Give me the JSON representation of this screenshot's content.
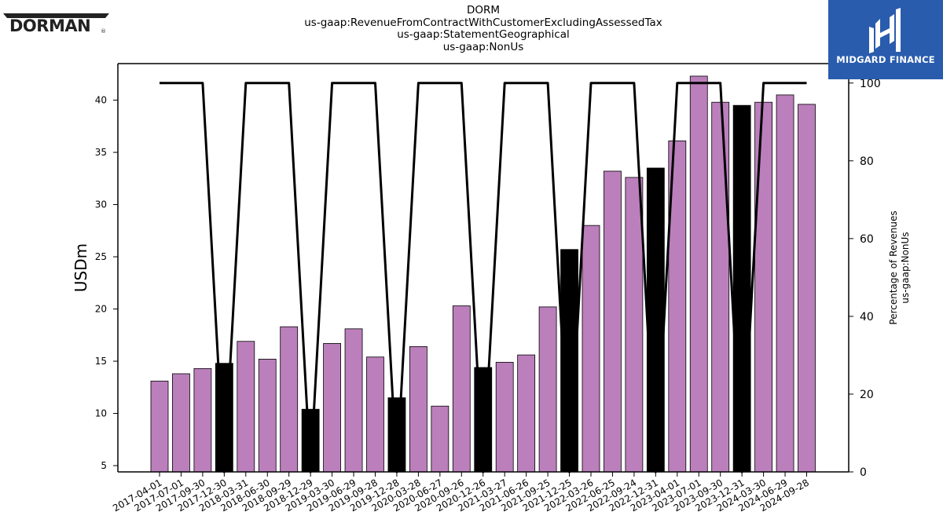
{
  "header": {
    "ticker": "DORM",
    "concept": "us-gaap:RevenueFromContractWithCustomerExcludingAssessedTax",
    "axis": "us-gaap:StatementGeographical",
    "member": "us-gaap:NonUs"
  },
  "brand": {
    "logo_text": "DORMAN"
  },
  "badge": {
    "text": "MIDGARD FINANCE"
  },
  "colors": {
    "bar": "#bb7fbc",
    "highlight_bar": "#000000",
    "line": "#000000",
    "badge_bg": "#2a5cae"
  },
  "chart_data": {
    "type": "bar",
    "categories": [
      "2017-04-01",
      "2017-07-01",
      "2017-09-30",
      "2017-12-30",
      "2018-03-31",
      "2018-06-30",
      "2018-09-29",
      "2018-12-29",
      "2019-03-30",
      "2019-06-29",
      "2019-09-28",
      "2019-12-28",
      "2020-03-28",
      "2020-06-27",
      "2020-09-26",
      "2020-12-26",
      "2021-03-27",
      "2021-06-26",
      "2021-09-25",
      "2021-12-25",
      "2022-03-26",
      "2022-06-25",
      "2022-09-24",
      "2022-12-31",
      "2023-04-01",
      "2023-07-01",
      "2023-09-30",
      "2023-12-31",
      "2024-03-30",
      "2024-06-29",
      "2024-09-28"
    ],
    "values": [
      13.1,
      13.8,
      14.3,
      14.8,
      16.9,
      15.2,
      18.3,
      10.4,
      16.7,
      18.1,
      15.4,
      11.5,
      16.4,
      10.7,
      20.3,
      14.4,
      14.9,
      15.6,
      20.2,
      25.7,
      28.0,
      33.2,
      32.6,
      33.5,
      36.1,
      42.3,
      39.8,
      39.5,
      39.8,
      40.5,
      39.6
    ],
    "highlight": [
      false,
      false,
      false,
      true,
      false,
      false,
      false,
      true,
      false,
      false,
      false,
      true,
      false,
      false,
      false,
      true,
      false,
      false,
      false,
      true,
      false,
      false,
      false,
      true,
      false,
      false,
      false,
      true,
      false,
      false,
      false
    ],
    "ylabel": "USDm",
    "ylim": [
      4.4,
      43.5
    ],
    "yticks": [
      5,
      10,
      15,
      20,
      25,
      30,
      35,
      40
    ],
    "secondary_series": {
      "values": [
        100,
        100,
        100,
        0,
        100,
        100,
        100,
        0,
        100,
        100,
        100,
        0,
        100,
        100,
        100,
        0,
        100,
        100,
        100,
        0,
        100,
        100,
        100,
        0,
        100,
        100,
        100,
        0,
        100,
        100,
        100
      ]
    },
    "y2label_lines": [
      "Percentage of Revenues",
      "us-gaap:NonUs"
    ],
    "y2lim": [
      0,
      105
    ],
    "y2ticks": [
      0,
      20,
      40,
      60,
      80,
      100
    ],
    "grid": false,
    "legend": "none"
  }
}
